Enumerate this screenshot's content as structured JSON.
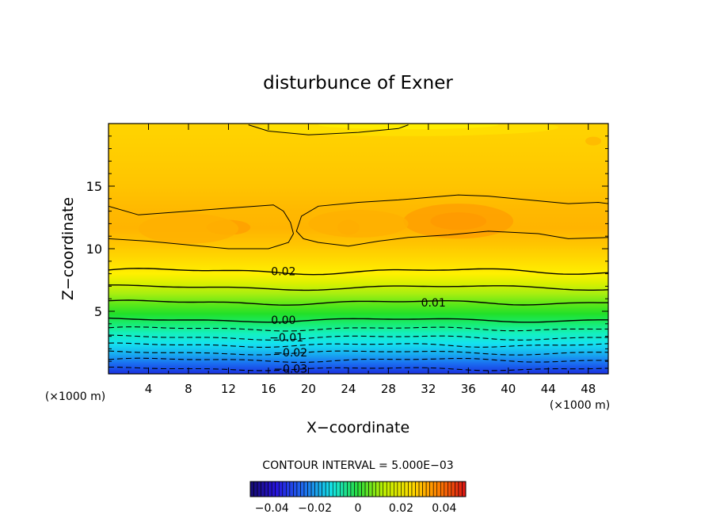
{
  "chart_data": {
    "type": "contour",
    "title": "disturbunce of Exner",
    "xlabel": "X−coordinate",
    "ylabel": "Z−coordinate",
    "x_unit_left": "(×1000 m)",
    "x_unit_right": "(×1000 m)",
    "xlim": [
      0,
      50
    ],
    "ylim": [
      0,
      20
    ],
    "x_ticks": [
      4,
      8,
      12,
      16,
      20,
      24,
      28,
      32,
      36,
      40,
      44,
      48
    ],
    "y_ticks": [
      5,
      10,
      15
    ],
    "contour_interval_text": "CONTOUR INTERVAL = 5.000E−03",
    "contour_labels": [
      {
        "text": "0.02",
        "x": 17.5,
        "z": 8.2
      },
      {
        "text": "0.01",
        "x": 32.5,
        "z": 5.7
      },
      {
        "text": "0.00",
        "x": 17.5,
        "z": 4.3
      },
      {
        "text": "−0.01",
        "x": 17.8,
        "z": 2.9
      },
      {
        "text": "−0.02",
        "x": 18.2,
        "z": 1.7
      },
      {
        "text": "−0.03",
        "x": 18.2,
        "z": 0.4
      }
    ],
    "colorbar": {
      "range": [
        -0.05,
        0.05
      ],
      "tick_labels": [
        "−0.04",
        "−0.02",
        "0",
        "0.02",
        "0.04"
      ],
      "tick_values": [
        -0.04,
        -0.02,
        0,
        0.02,
        0.04
      ]
    },
    "colors": {
      "deep_blue": "#1030e0",
      "cyan": "#10e8f0",
      "green": "#20e020",
      "yellow_green": "#b8f000",
      "yellow": "#ffe800",
      "orange": "#ffb000"
    }
  }
}
